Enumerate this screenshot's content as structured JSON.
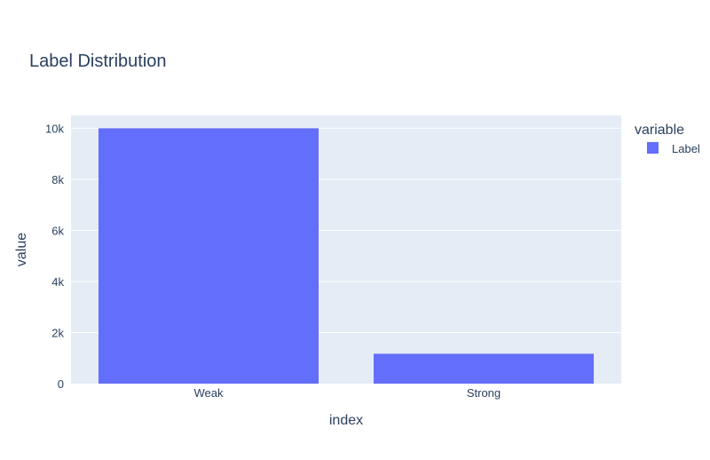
{
  "chart_data": {
    "type": "bar",
    "title": "Label Distribution",
    "xlabel": "index",
    "ylabel": "value",
    "categories": [
      "Weak",
      "Strong"
    ],
    "series": [
      {
        "name": "Label",
        "values": [
          10000,
          1170
        ]
      }
    ],
    "ylim": [
      0,
      10500
    ],
    "yticks": [
      0,
      2000,
      4000,
      6000,
      8000,
      10000
    ],
    "ytick_labels": [
      "0",
      "2k",
      "4k",
      "6k",
      "8k",
      "10k"
    ],
    "grid": true,
    "legend": {
      "title": "variable",
      "placement": "top-right"
    },
    "colors": {
      "bar": "#636efa",
      "plot_bg": "#e5ecf6",
      "grid": "#ffffff",
      "text": "#2a3f5f"
    }
  }
}
